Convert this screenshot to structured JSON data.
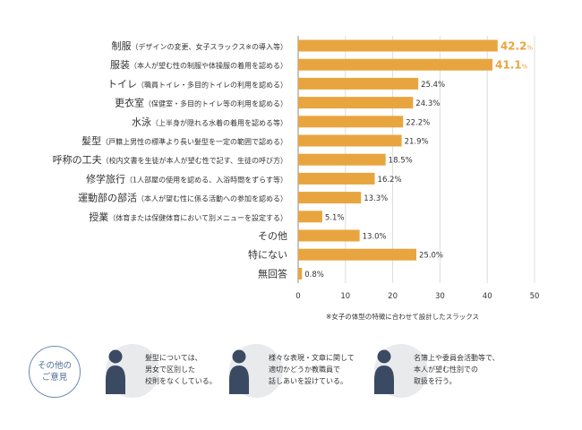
{
  "chart_data": {
    "type": "bar",
    "orientation": "horizontal",
    "categories": [
      {
        "main": "制服",
        "sub": "（デザインの変更、女子スラックス※の導入等）"
      },
      {
        "main": "服装",
        "sub": "（本人が望む性の制服や体操服の着用を認める）"
      },
      {
        "main": "トイレ",
        "sub": "（職員トイレ・多目的トイレの利用を認める）"
      },
      {
        "main": "更衣室",
        "sub": "（保健室・多目的トイレ等の利用を認める）"
      },
      {
        "main": "水泳",
        "sub": "（上半身が隠れる水着の着用を認める等）"
      },
      {
        "main": "髪型",
        "sub": "（戸籍上男性の標準より長い髪型を一定の範囲で認める）"
      },
      {
        "main": "呼称の工夫",
        "sub": "（校内文書を生徒が本人が望む性で記す、生徒の呼び方）"
      },
      {
        "main": "修学旅行",
        "sub": "（1人部屋の使用を認める、入浴時間をずらす等）"
      },
      {
        "main": "運動部の部活",
        "sub": "（本人が望む性に係る活動への参加を認める）"
      },
      {
        "main": "授業",
        "sub": "（体育または保健体育において別メニューを設定する）"
      },
      {
        "main": "その他",
        "sub": ""
      },
      {
        "main": "特にない",
        "sub": ""
      },
      {
        "main": "無回答",
        "sub": ""
      }
    ],
    "values": [
      42.2,
      41.1,
      25.4,
      24.3,
      22.2,
      21.9,
      18.5,
      16.2,
      13.3,
      5.1,
      13.0,
      25.0,
      0.8
    ],
    "value_labels": [
      "42.2",
      "41.1",
      "25.4%",
      "24.3%",
      "22.2%",
      "21.9%",
      "18.5%",
      "16.2%",
      "13.3%",
      "5.1%",
      "13.0%",
      "25.0%",
      "0.8%"
    ],
    "highlight_count": 2,
    "percent_sign": "%",
    "xlim": [
      0,
      50
    ],
    "xticks": [
      "0",
      "10",
      "20",
      "30",
      "40",
      "50"
    ],
    "grid": true,
    "bar_color": "#e8a53f",
    "grid_color": "#dddddd"
  },
  "footnote": "※女子の体型の特徴に合わせて設計したスラックス",
  "opinions": {
    "badge": "その他の\nご意見",
    "badge_color": "#4c6c99",
    "icon_color": "#3b4a63",
    "items": [
      {
        "icon": "person-icon",
        "text": "髪型については、\n男女で区別した\n校則をなくしている。"
      },
      {
        "icon": "person-icon",
        "text": "様々な表現・文章に関して\n適切かどうか教職員で\n話しあいを設けている。"
      },
      {
        "icon": "person-icon",
        "text": "名簿上や委員会活動等で、\n本人が望む性別での\n取扱を行う。"
      }
    ]
  }
}
